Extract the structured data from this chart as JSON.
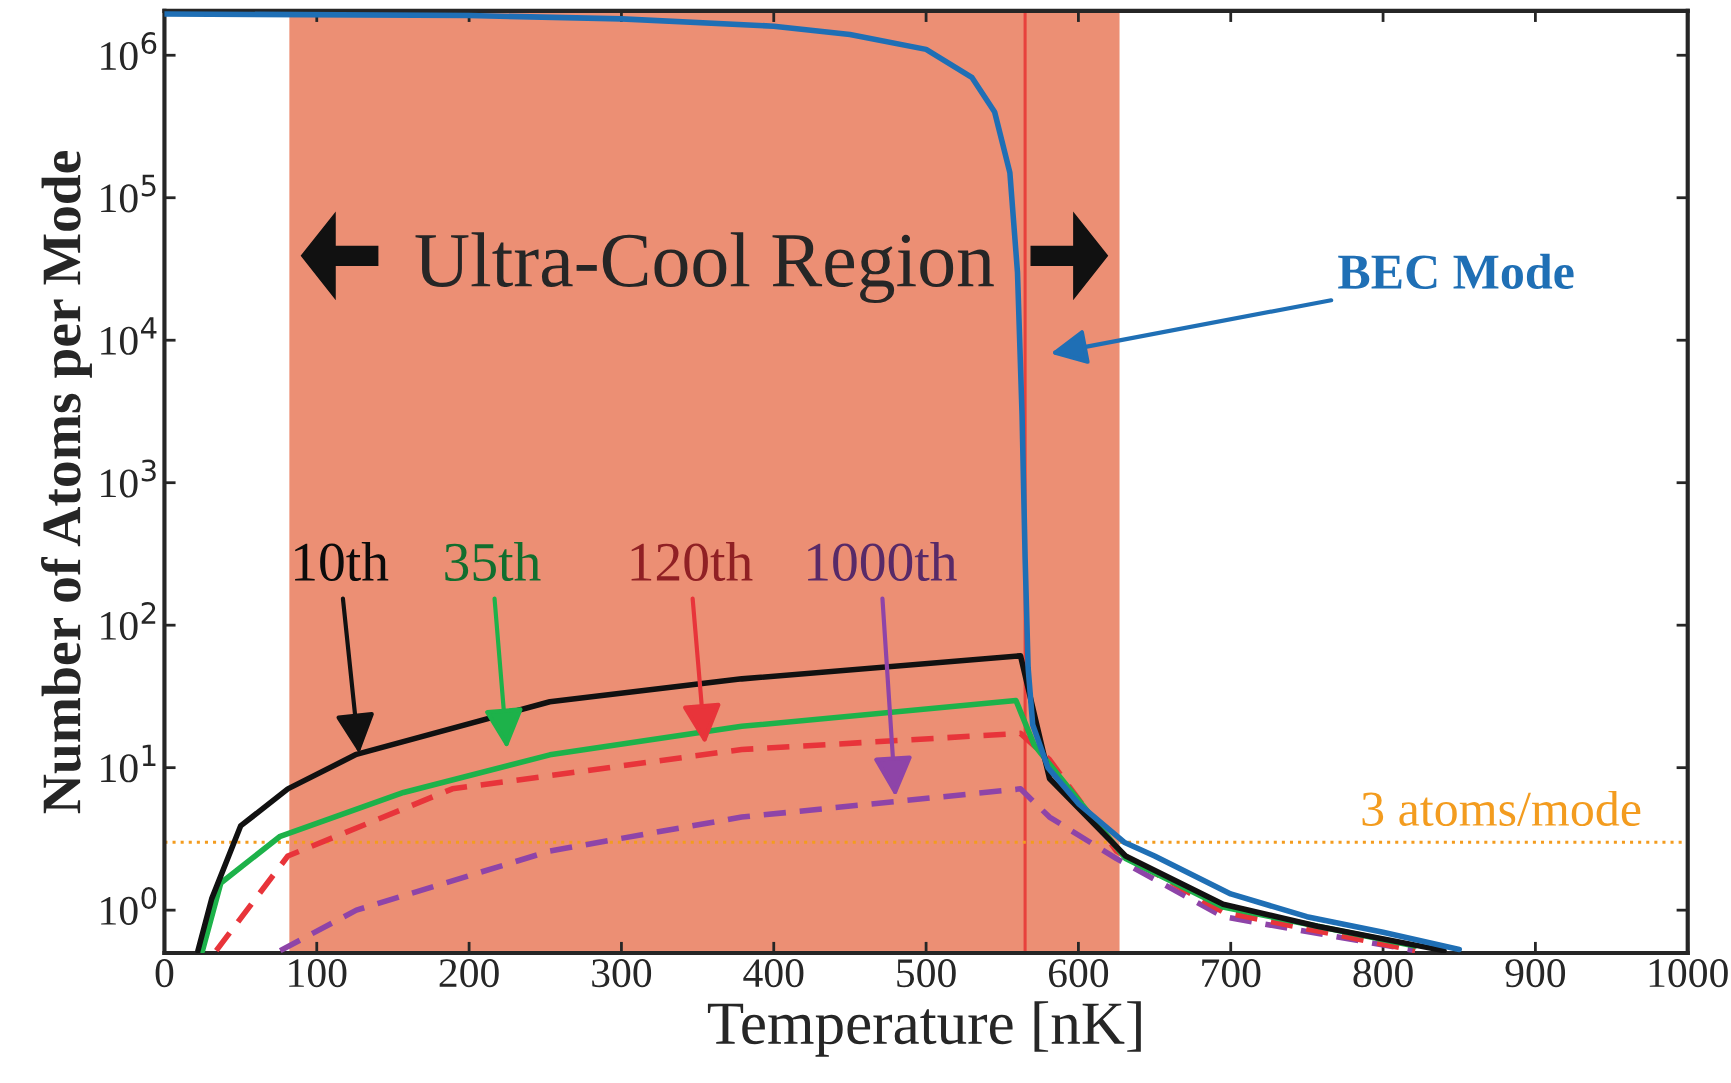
{
  "chart_data": {
    "type": "line",
    "xlabel": "Temperature [nK]",
    "ylabel": "Number of Atoms per Mode",
    "log": "y",
    "xlim": [
      0,
      1000
    ],
    "xticks": [
      0,
      100,
      200,
      300,
      400,
      500,
      600,
      700,
      800,
      900,
      1000
    ],
    "ylim": [
      0.5,
      2050000.0
    ],
    "yticks": [
      {
        "value": 1,
        "label": "10$^{0}$"
      },
      {
        "value": 10,
        "label": "10$^{1}$"
      },
      {
        "value": 100,
        "label": "10$^{2}$"
      },
      {
        "value": 1000,
        "label": "10$^{3}$"
      },
      {
        "value": 10000,
        "label": "10$^{4}$"
      },
      {
        "value": 100000,
        "label": "10$^{5}$"
      },
      {
        "value": 1000000,
        "label": "10$^{6}$"
      }
    ],
    "grid": false,
    "legend": false,
    "series": [
      {
        "name": "BEC Mode",
        "color": "#1f6fb5",
        "line_style": "solid",
        "x": [
          0,
          200,
          300,
          400,
          450,
          500,
          530,
          545,
          555,
          560,
          563,
          565,
          567,
          570,
          580,
          600,
          630,
          650,
          700,
          750,
          800,
          850
        ],
        "values": [
          1950000,
          1900000,
          1800000,
          1600000,
          1400000,
          1100000,
          700000,
          400000,
          150000,
          30000,
          3000,
          300,
          50,
          20,
          10,
          5.6,
          3,
          2.4,
          1.3,
          0.9,
          0.7,
          0.53
        ]
      },
      {
        "name": "10th",
        "color": "#111111",
        "line_style": "solid",
        "x": [
          22,
          31,
          50,
          81,
          126,
          253,
          379,
          562,
          581,
          631,
          695,
          757,
          840
        ],
        "values": [
          0.52,
          1.2,
          3.9,
          7.1,
          12.4,
          29,
          42,
          61,
          8.4,
          2.4,
          1.1,
          0.77,
          0.52
        ]
      },
      {
        "name": "35th",
        "color": "#1db24a",
        "line_style": "solid",
        "x": [
          25,
          37,
          76,
          157,
          253,
          379,
          559,
          571,
          631,
          695,
          821
        ],
        "values": [
          0.52,
          1.55,
          3.3,
          6.7,
          12.3,
          19.5,
          29.6,
          14.4,
          2.3,
          1.05,
          0.56
        ]
      },
      {
        "name": "120th",
        "color": "#e8343a",
        "line_style": "dashed",
        "x": [
          34,
          81,
          189,
          379,
          562,
          581,
          625,
          695,
          821
        ],
        "values": [
          0.52,
          2.4,
          7.1,
          13.4,
          17.4,
          11.4,
          2.6,
          0.97,
          0.52
        ]
      },
      {
        "name": "1000th",
        "color": "#8e44a8",
        "line_style": "dashed",
        "x": [
          76,
          126,
          253,
          379,
          562,
          581,
          625,
          695,
          821
        ],
        "values": [
          0.52,
          1.0,
          2.6,
          4.5,
          7.1,
          4.5,
          2.3,
          0.9,
          0.52
        ]
      }
    ],
    "bands": [
      {
        "axis": "x",
        "from": 82,
        "to": 627,
        "label": "Ultra-Cool Region",
        "color": "#ec8f74"
      }
    ],
    "ref_lines": [
      {
        "axis": "x",
        "value": 565,
        "color": "#e8413c",
        "line_style": "solid"
      },
      {
        "axis": "y",
        "value": 3,
        "label": "3 atoms/mode",
        "color": "#f39c1f",
        "line_style": "dotted"
      }
    ]
  }
}
